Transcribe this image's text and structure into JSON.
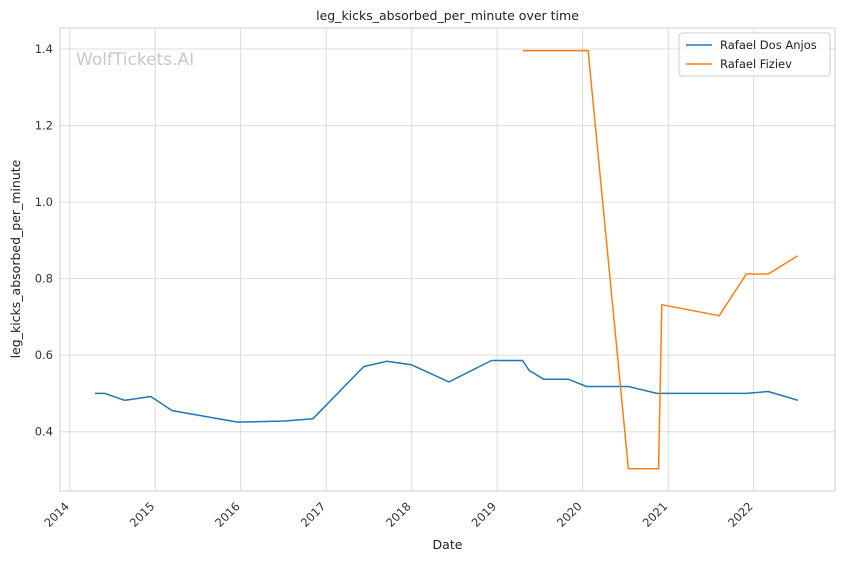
{
  "chart_data": {
    "type": "line",
    "title": "leg_kicks_absorbed_per_minute over time",
    "xlabel": "Date",
    "ylabel": "leg_kicks_absorbed_per_minute",
    "watermark": "WolfTickets.AI",
    "x_ticks": [
      "2014",
      "2015",
      "2016",
      "2017",
      "2018",
      "2019",
      "2020",
      "2021",
      "2022"
    ],
    "y_ticks": [
      "0.4",
      "0.6",
      "0.8",
      "1.0",
      "1.2",
      "1.4"
    ],
    "xlim": [
      "2013-11-20",
      "2022-12-15"
    ],
    "ylim": [
      0.245,
      1.455
    ],
    "grid": true,
    "legend_position": "top-right",
    "series": [
      {
        "name": "Rafael Dos Anjos",
        "color": "#1f77b4",
        "points": [
          [
            "2014-04-19",
            0.5
          ],
          [
            "2014-05-31",
            0.5
          ],
          [
            "2014-08-23",
            0.482
          ],
          [
            "2014-12-13",
            0.492
          ],
          [
            "2015-03-14",
            0.455
          ],
          [
            "2015-12-19",
            0.425
          ],
          [
            "2016-07-07",
            0.428
          ],
          [
            "2016-11-05",
            0.434
          ],
          [
            "2017-06-10",
            0.57
          ],
          [
            "2017-09-16",
            0.584
          ],
          [
            "2017-12-30",
            0.575
          ],
          [
            "2018-06-09",
            0.53
          ],
          [
            "2018-12-08",
            0.586
          ],
          [
            "2019-04-20",
            0.586
          ],
          [
            "2019-05-18",
            0.56
          ],
          [
            "2019-07-20",
            0.537
          ],
          [
            "2019-11-02",
            0.537
          ],
          [
            "2020-01-18",
            0.518
          ],
          [
            "2020-07-15",
            0.518
          ],
          [
            "2020-11-14",
            0.5
          ],
          [
            "2021-08-07",
            0.5
          ],
          [
            "2021-12-01",
            0.5
          ],
          [
            "2022-03-05",
            0.505
          ],
          [
            "2022-07-09",
            0.482
          ]
        ]
      },
      {
        "name": "Rafael Fiziev",
        "color": "#ff7f0e",
        "points": [
          [
            "2019-04-20",
            1.396
          ],
          [
            "2019-08-31",
            1.396
          ],
          [
            "2020-01-25",
            1.396
          ],
          [
            "2020-07-15",
            0.303
          ],
          [
            "2020-11-21",
            0.303
          ],
          [
            "2020-12-05",
            0.732
          ],
          [
            "2021-08-07",
            0.703
          ],
          [
            "2021-12-01",
            0.812
          ],
          [
            "2022-03-05",
            0.812
          ],
          [
            "2022-07-09",
            0.86
          ]
        ]
      }
    ]
  }
}
